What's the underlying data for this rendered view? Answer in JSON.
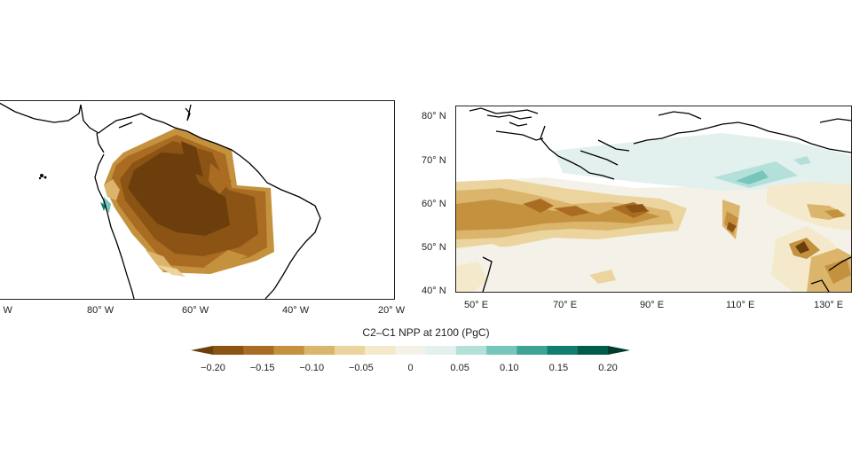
{
  "colorbar": {
    "title": "C2–C1 NPP at 2100 (PgC)",
    "tick_labels": [
      "−0.20",
      "−0.15",
      "−0.10",
      "−0.05",
      "0",
      "0.05",
      "0.10",
      "0.15",
      "0.20"
    ],
    "range": [
      -0.2,
      0.2
    ],
    "colors": [
      "#6b3e0b",
      "#8c5414",
      "#a96c22",
      "#c4923f",
      "#dbb56c",
      "#ecd49e",
      "#f5e9cc",
      "#f4f1e8",
      "#e2f0ee",
      "#b4e0da",
      "#78c6bb",
      "#3ea496",
      "#117f70",
      "#005d4c",
      "#003c30"
    ]
  },
  "maps": [
    {
      "region": "South America",
      "lon_labels": [
        "° W",
        "80° W",
        "60° W",
        "40° W",
        "20° W"
      ],
      "lat_labels": []
    },
    {
      "region": "Northern Asia",
      "lon_labels": [
        "50° E",
        "70° E",
        "90° E",
        "110° E",
        "130° E"
      ],
      "lat_labels": [
        "80° N",
        "70° N",
        "60° N",
        "50° N",
        "40° N"
      ]
    }
  ]
}
